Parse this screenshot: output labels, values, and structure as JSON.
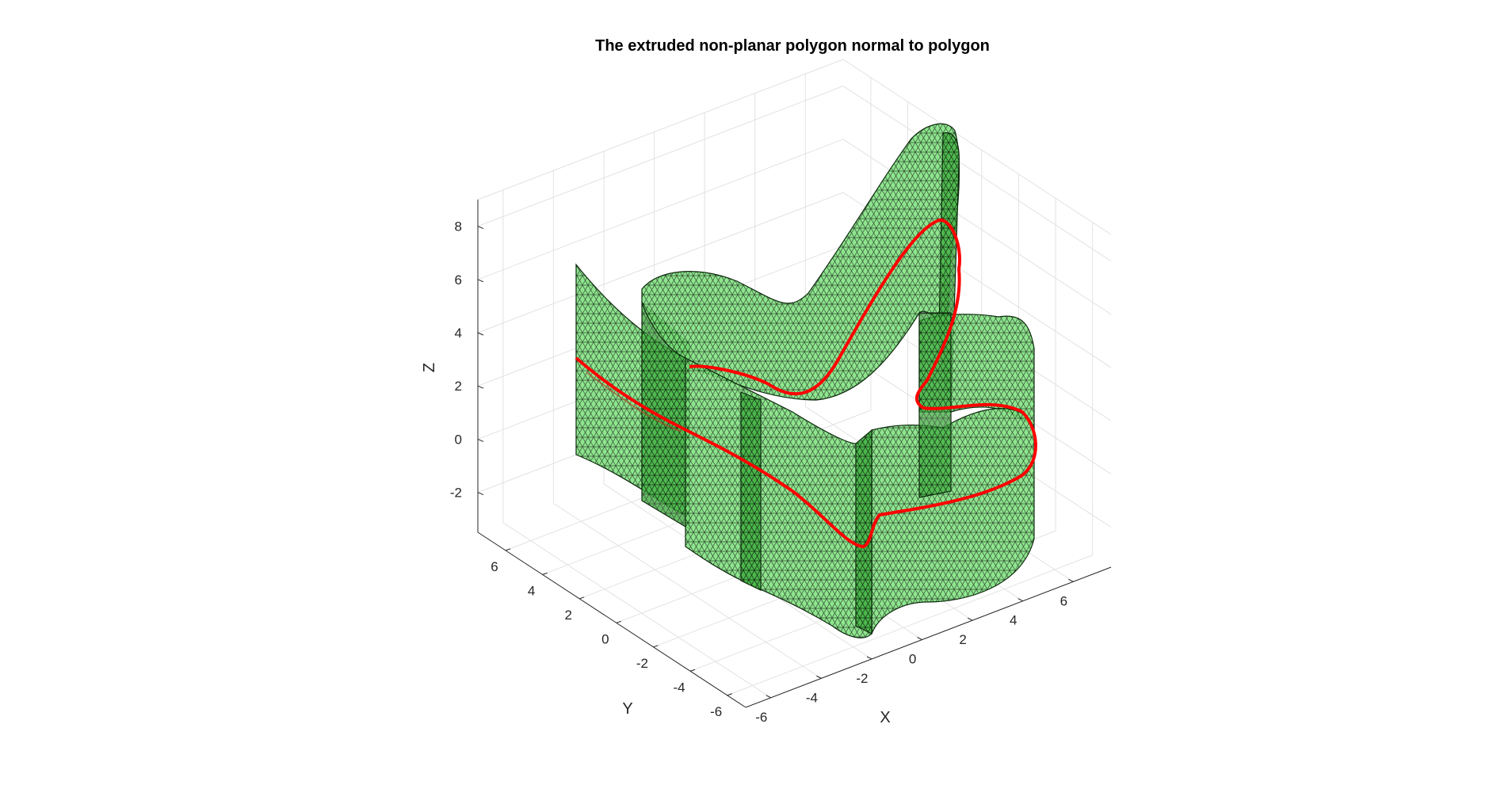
{
  "figure": {
    "title": "The extruded non-planar polygon normal to polygon"
  },
  "chart_data": {
    "type": "surface3d",
    "title": "The extruded non-planar polygon normal to polygon",
    "xlabel": "X",
    "ylabel": "Y",
    "zlabel": "Z",
    "xticks": [
      "-6",
      "-4",
      "-2",
      "0",
      "2",
      "4",
      "6"
    ],
    "yticks": [
      "-6",
      "-4",
      "-2",
      "0",
      "2",
      "4",
      "6"
    ],
    "zticks": [
      "-2",
      "0",
      "2",
      "4",
      "6",
      "8"
    ],
    "xlim": [
      -7,
      7.5
    ],
    "ylim": [
      -7,
      7.5
    ],
    "zlim": [
      -3.5,
      9
    ],
    "grid": true,
    "series": [
      {
        "kind": "surface",
        "description_color": "#66ff66",
        "edge_color": "#000000",
        "face_alpha": 0.7
      },
      {
        "kind": "curve",
        "color": "#ff0000"
      }
    ],
    "colors": {
      "surface": "#66e866",
      "surface_edge": "#1a1a1a",
      "curve": "#ff0000"
    }
  }
}
